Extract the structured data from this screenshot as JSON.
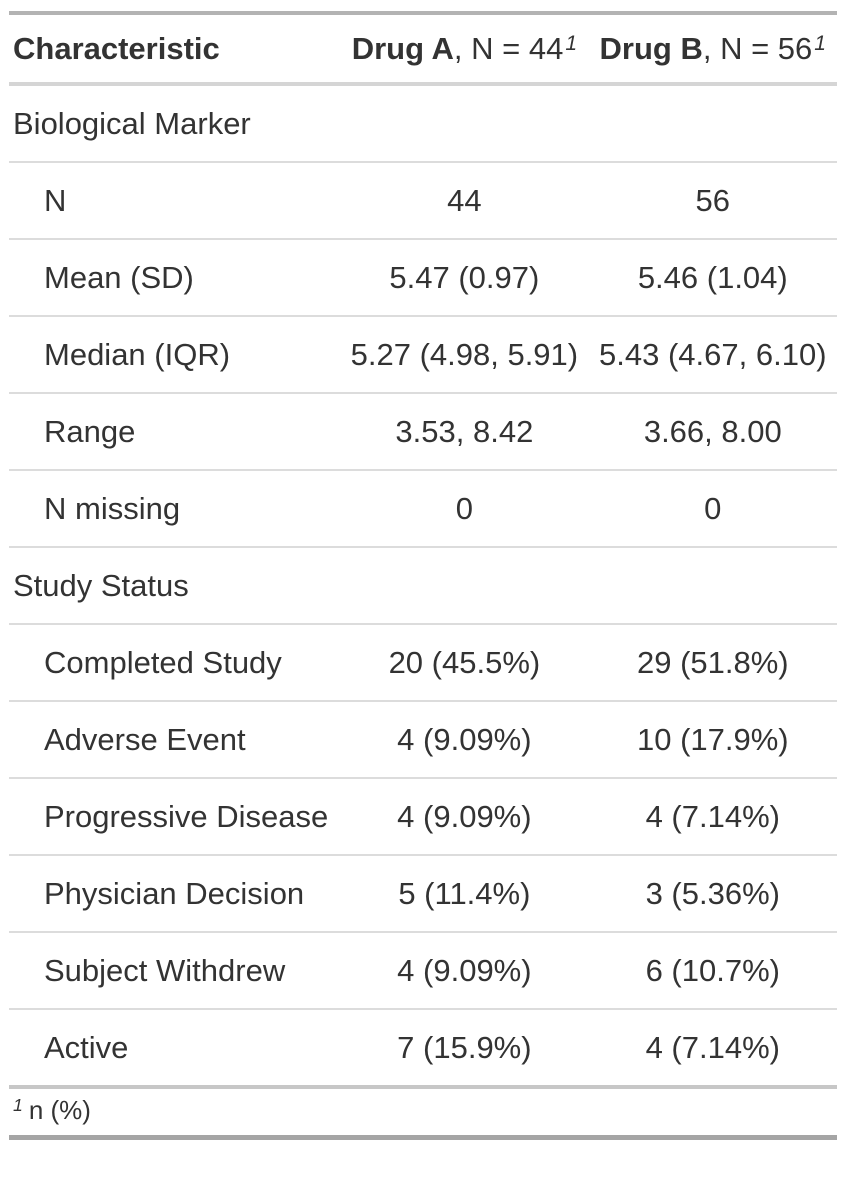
{
  "table": {
    "header": {
      "characteristic_label": "Characteristic",
      "col_a": {
        "name": "Drug A",
        "suffix": ", N = 44",
        "footnote_mark": "1"
      },
      "col_b": {
        "name": "Drug B",
        "suffix": ", N = 56",
        "footnote_mark": "1"
      }
    },
    "rows": [
      {
        "label": "Biological Marker",
        "type": "group",
        "drug_a": "",
        "drug_b": ""
      },
      {
        "label": "N",
        "type": "item",
        "drug_a": "44",
        "drug_b": "56"
      },
      {
        "label": "Mean (SD)",
        "type": "item",
        "drug_a": "5.47 (0.97)",
        "drug_b": "5.46 (1.04)"
      },
      {
        "label": "Median (IQR)",
        "type": "item",
        "drug_a": "5.27 (4.98, 5.91)",
        "drug_b": "5.43 (4.67, 6.10)"
      },
      {
        "label": "Range",
        "type": "item",
        "drug_a": "3.53, 8.42",
        "drug_b": "3.66, 8.00"
      },
      {
        "label": "N missing",
        "type": "item",
        "drug_a": "0",
        "drug_b": "0"
      },
      {
        "label": "Study Status",
        "type": "group",
        "drug_a": "",
        "drug_b": ""
      },
      {
        "label": "Completed Study",
        "type": "item",
        "drug_a": "20 (45.5%)",
        "drug_b": "29 (51.8%)"
      },
      {
        "label": "Adverse Event",
        "type": "item",
        "drug_a": "4 (9.09%)",
        "drug_b": "10 (17.9%)"
      },
      {
        "label": "Progressive Disease",
        "type": "item",
        "drug_a": "4 (9.09%)",
        "drug_b": "4 (7.14%)"
      },
      {
        "label": "Physician Decision",
        "type": "item",
        "drug_a": "5 (11.4%)",
        "drug_b": "3 (5.36%)"
      },
      {
        "label": "Subject Withdrew",
        "type": "item",
        "drug_a": "4 (9.09%)",
        "drug_b": "6 (10.7%)"
      },
      {
        "label": "Active",
        "type": "item",
        "drug_a": "7 (15.9%)",
        "drug_b": "4 (7.14%)"
      }
    ],
    "footnote": {
      "mark": "1",
      "text": "n (%)"
    }
  },
  "colors": {
    "text": "#333333",
    "border_top": "#b3b3b3",
    "border_bottom": "#a5a5a5",
    "header_underline": "#d5d5d5",
    "row_separator": "#dcdcdc",
    "footnote_separator": "#c7c7c7"
  }
}
